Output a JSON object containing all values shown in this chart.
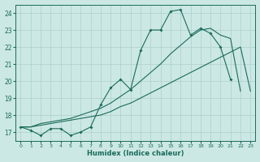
{
  "xlabel": "Humidex (Indice chaleur)",
  "background_color": "#cce8e4",
  "grid_color": "#aacfcb",
  "line_color": "#1a6b5a",
  "xlim": [
    -0.5,
    23.5
  ],
  "ylim": [
    16.5,
    24.5
  ],
  "xticks": [
    0,
    1,
    2,
    3,
    4,
    5,
    6,
    7,
    8,
    9,
    10,
    11,
    12,
    13,
    14,
    15,
    16,
    17,
    18,
    19,
    20,
    21,
    22,
    23
  ],
  "yticks": [
    17,
    18,
    19,
    20,
    21,
    22,
    23,
    24
  ],
  "series_main": [
    17.3,
    17.1,
    16.8,
    17.2,
    17.2,
    16.8,
    17.0,
    17.3,
    18.6,
    19.6,
    20.1,
    19.5,
    21.8,
    23.0,
    23.0,
    24.1,
    24.2,
    22.7,
    23.1,
    22.8,
    22.0,
    20.1,
    null,
    null
  ],
  "series_linear": [
    17.3,
    17.3,
    17.4,
    17.5,
    17.6,
    17.7,
    17.8,
    17.9,
    18.0,
    18.2,
    18.5,
    18.7,
    19.0,
    19.3,
    19.6,
    19.9,
    20.2,
    20.5,
    20.8,
    21.1,
    21.4,
    21.7,
    22.0,
    19.4
  ],
  "series_smooth": [
    17.3,
    17.3,
    17.5,
    17.6,
    17.7,
    17.8,
    18.0,
    18.2,
    18.4,
    18.7,
    19.1,
    19.5,
    20.0,
    20.5,
    21.0,
    21.6,
    22.1,
    22.6,
    23.0,
    23.1,
    22.7,
    22.5,
    19.4,
    null
  ]
}
